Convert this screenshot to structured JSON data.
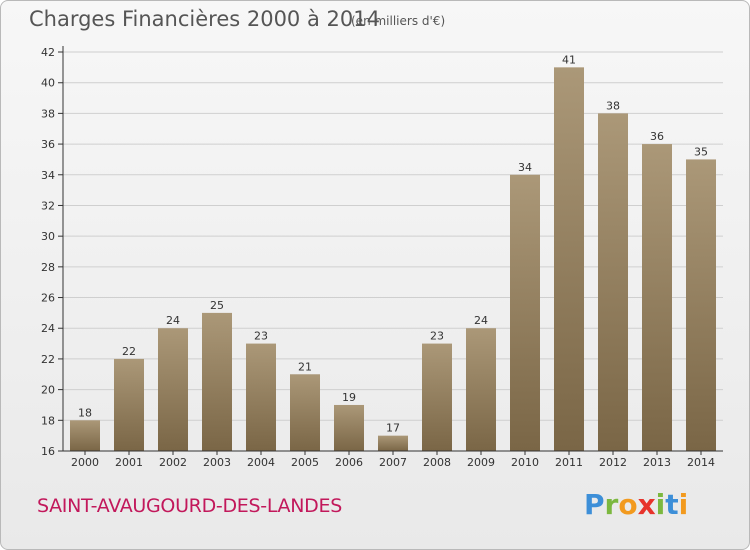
{
  "title": "Charges Financières 2000 à 2014",
  "subtitle": "(en milliers d'€)",
  "commune": "SAINT-AVAUGOURD-DES-LANDES",
  "logo": {
    "letters": [
      {
        "char": "P",
        "color": "#3d8fd8"
      },
      {
        "char": "r",
        "color": "#7cb83f"
      },
      {
        "char": "o",
        "color": "#f29a1e"
      },
      {
        "char": "x",
        "color": "#e7332b"
      },
      {
        "char": "i",
        "color": "#7cb83f"
      },
      {
        "char": "t",
        "color": "#3d8fd8"
      },
      {
        "char": "i",
        "color": "#f29a1e"
      }
    ]
  },
  "colors": {
    "bar_light": "#ab9878",
    "bar_dark": "#7a6646",
    "axis": "#333333",
    "grid": "#cfcfcf"
  },
  "chart_data": {
    "type": "bar",
    "categories": [
      "2000",
      "2001",
      "2002",
      "2003",
      "2004",
      "2005",
      "2006",
      "2007",
      "2008",
      "2009",
      "2010",
      "2011",
      "2012",
      "2013",
      "2014"
    ],
    "values": [
      18,
      22,
      24,
      25,
      23,
      21,
      19,
      17,
      23,
      24,
      34,
      41,
      38,
      36,
      35
    ],
    "ylim": [
      16,
      42
    ],
    "yticks": [
      16,
      18,
      20,
      22,
      24,
      26,
      28,
      30,
      32,
      34,
      36,
      38,
      40,
      42
    ],
    "grid": true
  }
}
